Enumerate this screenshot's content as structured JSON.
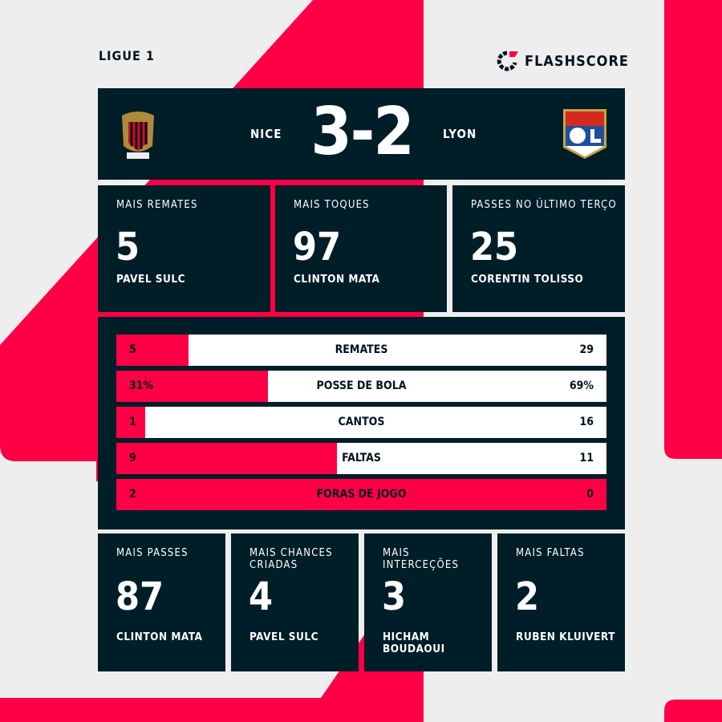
{
  "league": "LIGUE 1",
  "brand": "FLASHSCORE",
  "colors": {
    "accent": "#ff0046",
    "dark": "#001e28",
    "background": "#eeeeee"
  },
  "match": {
    "home": "NICE",
    "away": "LYON",
    "home_score": "3",
    "separator": "-",
    "away_score": "2",
    "home_crest": "OGC NICE",
    "away_crest": "OLYMPIQUE LYONNAIS"
  },
  "top_stats": [
    {
      "label": "MAIS REMATES",
      "value": "5",
      "player": "PAVEL SULC"
    },
    {
      "label": "MAIS TOQUES",
      "value": "97",
      "player": "CLINTON MATA"
    },
    {
      "label": "PASSES NO ÚLTIMO TERÇO",
      "value": "25",
      "player": "CORENTIN TOLISSO"
    }
  ],
  "comparison": [
    {
      "label": "REMATES",
      "home": "5",
      "away": "29",
      "home_share": 0.147
    },
    {
      "label": "POSSE DE BOLA",
      "home": "31%",
      "away": "69%",
      "home_share": 0.31
    },
    {
      "label": "CANTOS",
      "home": "1",
      "away": "16",
      "home_share": 0.059
    },
    {
      "label": "FALTAS",
      "home": "9",
      "away": "11",
      "home_share": 0.45
    },
    {
      "label": "FORAS DE JOGO",
      "home": "2",
      "away": "0",
      "home_share": 1.0
    }
  ],
  "bottom_stats": [
    {
      "label": "MAIS PASSES",
      "value": "87",
      "player": "CLINTON MATA"
    },
    {
      "label": "MAIS CHANCES CRIADAS",
      "value": "4",
      "player": "PAVEL SULC"
    },
    {
      "label": "MAIS INTERCEÇÕES",
      "value": "3",
      "player": "HICHAM BOUDAOUI"
    },
    {
      "label": "MAIS FALTAS",
      "value": "2",
      "player": "RUBEN KLUIVERT"
    }
  ]
}
